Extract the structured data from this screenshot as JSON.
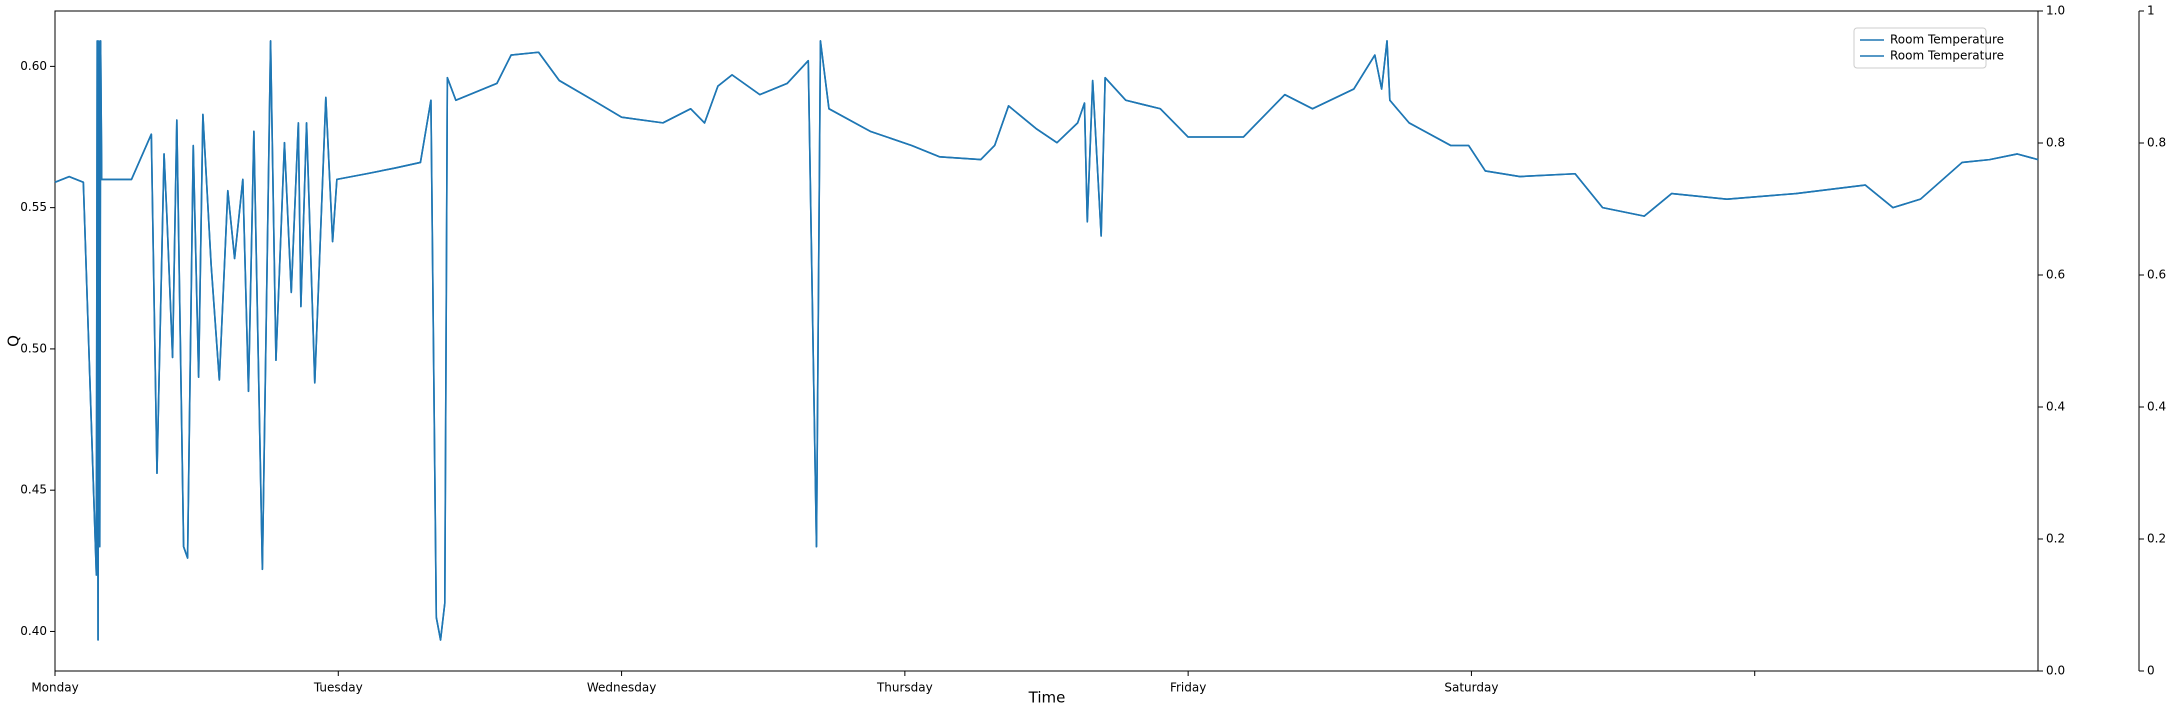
{
  "chart_data": {
    "type": "line",
    "x_label": "Time",
    "y_label": "Q",
    "xlim": [
      0,
      7
    ],
    "xticks": [
      {
        "value": 0,
        "label": "Monday"
      },
      {
        "value": 1,
        "label": "Tuesday"
      },
      {
        "value": 2,
        "label": "Wednesday"
      },
      {
        "value": 3,
        "label": "Thursday"
      },
      {
        "value": 4,
        "label": "Friday"
      },
      {
        "value": 5,
        "label": "Saturday"
      },
      {
        "value": 6,
        "label": null
      }
    ],
    "ylim": [
      0.386,
      0.6196
    ],
    "yticks": [
      {
        "value": 0.4,
        "label": "0.40"
      },
      0.45,
      {
        "value": 0.5,
        "label": "0.50"
      },
      0.55,
      {
        "value": 0.6,
        "label": "0.60"
      }
    ],
    "y2lim": [
      0,
      1
    ],
    "y2ticks": [
      {
        "value": 0,
        "label": "0.0"
      },
      0.2,
      0.4,
      0.6,
      0.8,
      {
        "value": 1,
        "label": "1.0"
      }
    ],
    "y3lim": [
      0,
      1
    ],
    "y3ticks": [
      0,
      0.2,
      0.4,
      0.6,
      0.8,
      1
    ],
    "legend": "upper right",
    "x": [
      0,
      0.05,
      0.1,
      0.146,
      0.149,
      0.152,
      0.155,
      0.158,
      0.161,
      0.165,
      0.27,
      0.34,
      0.36,
      0.385,
      0.395,
      0.415,
      0.43,
      0.454,
      0.468,
      0.488,
      0.507,
      0.522,
      0.551,
      0.58,
      0.61,
      0.634,
      0.663,
      0.683,
      0.702,
      0.732,
      0.761,
      0.78,
      0.81,
      0.834,
      0.859,
      0.868,
      0.888,
      0.917,
      0.956,
      0.98,
      0.995,
      1.1,
      1.2,
      1.29,
      1.327,
      1.346,
      1.361,
      1.376,
      1.385,
      1.415,
      1.56,
      1.61,
      1.707,
      1.78,
      1.9,
      2.0,
      2.146,
      2.244,
      2.293,
      2.34,
      2.39,
      2.488,
      2.585,
      2.659,
      2.688,
      2.702,
      2.732,
      2.878,
      3.024,
      3.122,
      3.268,
      3.317,
      3.366,
      3.463,
      3.537,
      3.61,
      3.634,
      3.644,
      3.663,
      3.693,
      3.707,
      3.78,
      3.902,
      4.0,
      4.195,
      4.341,
      4.439,
      4.585,
      4.659,
      4.683,
      4.702,
      4.712,
      4.78,
      4.927,
      4.99,
      5.049,
      5.171,
      5.366,
      5.463,
      5.61,
      5.707,
      5.902,
      6.146,
      6.39,
      6.488,
      6.585,
      6.732,
      6.829,
      6.927,
      7.0
    ],
    "series": [
      {
        "name": "Room Temperature",
        "color": "#1f77b4",
        "values": [
          0.559,
          0.561,
          0.559,
          0.42,
          0.609,
          0.397,
          0.609,
          0.43,
          0.609,
          0.56,
          0.56,
          0.576,
          0.456,
          0.569,
          0.547,
          0.497,
          0.581,
          0.43,
          0.426,
          0.572,
          0.49,
          0.583,
          0.53,
          0.489,
          0.556,
          0.532,
          0.56,
          0.485,
          0.577,
          0.422,
          0.609,
          0.496,
          0.573,
          0.52,
          0.58,
          0.515,
          0.58,
          0.488,
          0.589,
          0.538,
          0.56,
          0.562,
          0.564,
          0.566,
          0.588,
          0.405,
          0.397,
          0.41,
          0.596,
          0.588,
          0.594,
          0.604,
          0.605,
          0.595,
          0.588,
          0.582,
          0.58,
          0.585,
          0.58,
          0.593,
          0.597,
          0.59,
          0.594,
          0.602,
          0.43,
          0.609,
          0.585,
          0.577,
          0.572,
          0.568,
          0.567,
          0.572,
          0.586,
          0.578,
          0.573,
          0.58,
          0.587,
          0.545,
          0.595,
          0.54,
          0.596,
          0.588,
          0.585,
          0.575,
          0.575,
          0.59,
          0.585,
          0.592,
          0.604,
          0.592,
          0.609,
          0.588,
          0.58,
          0.572,
          0.572,
          0.563,
          0.561,
          0.562,
          0.55,
          0.547,
          0.555,
          0.553,
          0.555,
          0.558,
          0.55,
          0.553,
          0.566,
          0.567,
          0.569,
          0.567
        ]
      },
      {
        "name": "Room Temperature",
        "color": "#1f77b4",
        "values": [
          0.559,
          0.561,
          0.559,
          0.42,
          0.609,
          0.397,
          0.609,
          0.43,
          0.609,
          0.56,
          0.56,
          0.576,
          0.456,
          0.569,
          0.547,
          0.497,
          0.581,
          0.43,
          0.426,
          0.572,
          0.49,
          0.583,
          0.53,
          0.489,
          0.556,
          0.532,
          0.56,
          0.485,
          0.577,
          0.422,
          0.609,
          0.496,
          0.573,
          0.52,
          0.58,
          0.515,
          0.58,
          0.488,
          0.589,
          0.538,
          0.56,
          0.562,
          0.564,
          0.566,
          0.588,
          0.405,
          0.397,
          0.41,
          0.596,
          0.588,
          0.594,
          0.604,
          0.605,
          0.595,
          0.588,
          0.582,
          0.58,
          0.585,
          0.58,
          0.593,
          0.597,
          0.59,
          0.594,
          0.602,
          0.43,
          0.609,
          0.585,
          0.577,
          0.572,
          0.568,
          0.567,
          0.572,
          0.586,
          0.578,
          0.573,
          0.58,
          0.587,
          0.545,
          0.595,
          0.54,
          0.596,
          0.588,
          0.585,
          0.575,
          0.575,
          0.59,
          0.585,
          0.592,
          0.604,
          0.592,
          0.609,
          0.588,
          0.58,
          0.572,
          0.572,
          0.563,
          0.561,
          0.562,
          0.55,
          0.547,
          0.555,
          0.553,
          0.555,
          0.558,
          0.55,
          0.553,
          0.566,
          0.567,
          0.569,
          0.567
        ]
      }
    ]
  }
}
